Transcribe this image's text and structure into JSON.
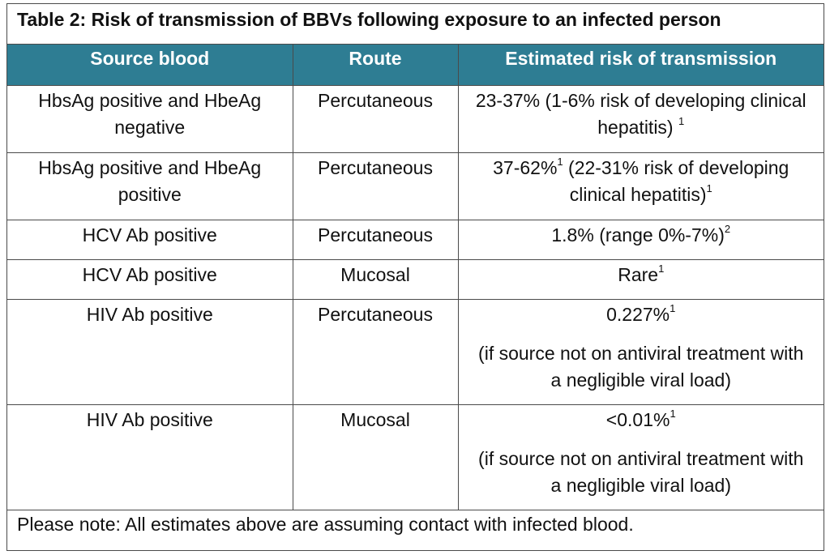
{
  "title": "Table 2: Risk of transmission of BBVs following exposure to an infected person",
  "header": {
    "col1": "Source blood",
    "col2": "Route",
    "col3": "Estimated risk of transmission"
  },
  "colors": {
    "header_bg": "#2e7d93",
    "header_text": "#ffffff",
    "border": "#4a4a4a"
  },
  "rows": [
    {
      "source": "HbsAg positive and HbeAg negative",
      "route": "Percutaneous",
      "risk_main": "23-37% (1-6% risk of developing clinical hepatitis)",
      "risk_sup": "1"
    },
    {
      "source": "HbsAg positive and HbeAg positive",
      "route": "Percutaneous",
      "risk_pre": "37-62%",
      "risk_pre_sup": "1",
      "risk_main": " (22-31% risk of developing clinical hepatitis)",
      "risk_sup": "1"
    },
    {
      "source": "HCV Ab positive",
      "route": "Percutaneous",
      "risk_main": "1.8% (range 0%-7%)",
      "risk_sup": "2"
    },
    {
      "source": "HCV Ab positive",
      "route": "Mucosal",
      "risk_main": "Rare",
      "risk_sup": "1"
    },
    {
      "source": "HIV Ab positive",
      "route": "Percutaneous",
      "risk_main": "0.227%",
      "risk_sup": "1",
      "risk_note": "(if source not on antiviral treatment with a negligible viral load)"
    },
    {
      "source": "HIV Ab positive",
      "route": "Mucosal",
      "risk_main": "<0.01%",
      "risk_sup": "1",
      "risk_note": "(if source not on antiviral treatment with a negligible viral load)"
    }
  ],
  "footer": "Please note: All estimates above are assuming contact with infected blood."
}
